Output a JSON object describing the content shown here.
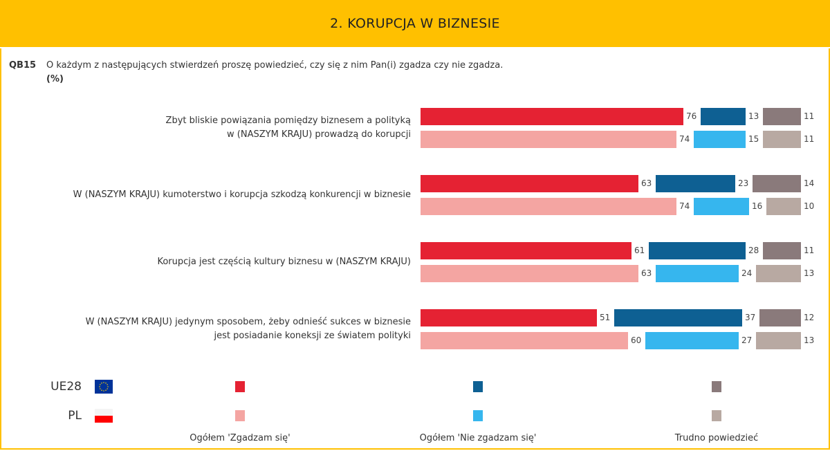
{
  "header": {
    "title": "2. KORUPCJA W BIZNESIE"
  },
  "question": {
    "id": "QB15",
    "text": "O każdym z następujących stwierdzeń proszę powiedzieć, czy się z nim Pan(i) zgadza czy nie zgadza.",
    "unit": "(%)"
  },
  "chart_data": {
    "type": "bar",
    "stacked": true,
    "orientation": "horizontal",
    "xlim": [
      0,
      100
    ],
    "categories": [
      "Zbyt bliskie powiązania pomiędzy biznesem a polityką\nw (NASZYM KRAJU) prowadzą do korupcji",
      "W (NASZYM KRAJU) kumoterstwo i korupcja szkodzą konkurencji w biznesie",
      "Korupcja jest częścią kultury biznesu w (NASZYM KRAJU)",
      "W (NASZYM KRAJU) jedynym sposobem, żeby odnieść sukces w biznesie\njest posiadanie koneksji ze światem polityki"
    ],
    "groups": [
      "UE28",
      "PL"
    ],
    "series": [
      {
        "name": "Ogółem 'Zgadzam się'",
        "colors": {
          "UE28": "#E52233",
          "PL": "#F4A5A2"
        },
        "values": {
          "UE28": [
            76,
            63,
            61,
            51
          ],
          "PL": [
            74,
            74,
            63,
            60
          ]
        }
      },
      {
        "name": "Ogółem 'Nie zgadzam się'",
        "colors": {
          "UE28": "#0E6093",
          "PL": "#36B6EE"
        },
        "values": {
          "UE28": [
            13,
            23,
            28,
            37
          ],
          "PL": [
            15,
            16,
            24,
            27
          ]
        }
      },
      {
        "name": "Trudno powiedzieć",
        "colors": {
          "UE28": "#8A7A7B",
          "PL": "#B8A9A2"
        },
        "values": {
          "UE28": [
            11,
            14,
            11,
            12
          ],
          "PL": [
            11,
            10,
            13,
            13
          ]
        }
      }
    ],
    "legend": "bottom"
  },
  "legend": {
    "groups": [
      {
        "label": "UE28",
        "flag": "eu-flag"
      },
      {
        "label": "PL",
        "flag": "poland-flag"
      }
    ]
  }
}
